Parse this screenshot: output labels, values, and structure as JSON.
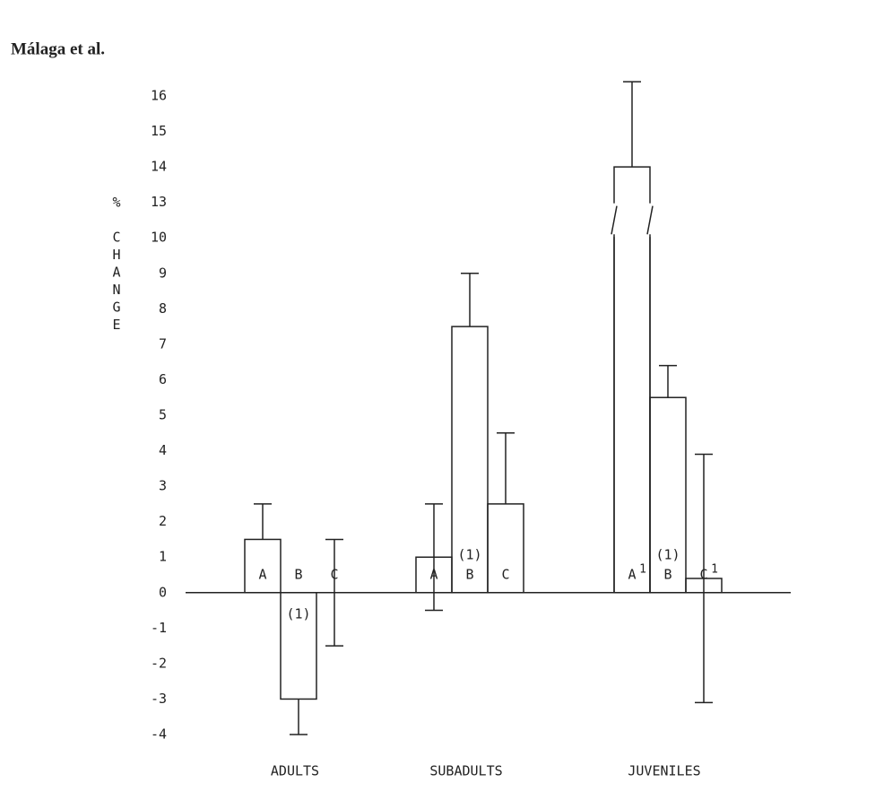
{
  "header": "Málaga et al.",
  "chart_data": {
    "type": "bar",
    "categories": [
      "ADULTS",
      "SUBADULTS",
      "JUVENILES"
    ],
    "y_label_symbol": "%",
    "y_label": "CHANGE",
    "ylim": [
      -4,
      16
    ],
    "y_break": [
      10,
      13
    ],
    "yticks": [
      16,
      15,
      14,
      13,
      10,
      9,
      8,
      7,
      6,
      5,
      4,
      3,
      2,
      1,
      0,
      -1,
      -2,
      -3,
      -4
    ],
    "series": [
      {
        "name": "A",
        "color": "#ffffff",
        "values": [
          1.5,
          1,
          14
        ],
        "err_plus": [
          1,
          1.5,
          2.4
        ],
        "err_minus": [
          null,
          1.5,
          null
        ],
        "notes": [
          null,
          null,
          "1"
        ]
      },
      {
        "name": "B",
        "color": "#ffffff",
        "values": [
          -3,
          7.5,
          5.5
        ],
        "err_plus": [
          null,
          1.5,
          0.9
        ],
        "err_minus": [
          1,
          null,
          null
        ],
        "notes": [
          "(1)",
          "(1)",
          "(1)"
        ]
      },
      {
        "name": "C",
        "color": "#ffffff",
        "values": [
          0,
          2.5,
          0.4
        ],
        "err_plus": [
          1.5,
          2,
          3.5
        ],
        "err_minus": [
          1.5,
          null,
          3.5
        ],
        "notes": [
          null,
          null,
          "1"
        ]
      }
    ]
  }
}
